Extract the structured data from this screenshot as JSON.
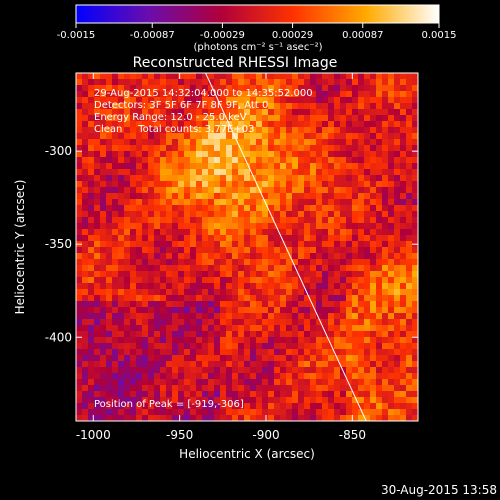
{
  "chart_data": {
    "type": "heatmap",
    "title": "Reconstructed RHESSI Image",
    "xlabel": "Heliocentric X (arcsec)",
    "ylabel": "Heliocentric Y (arcsec)",
    "xlim": [
      -1010,
      -812
    ],
    "ylim": [
      -445,
      -258
    ],
    "x_ticks": [
      -1000,
      -950,
      -900,
      -850
    ],
    "x_tick_labels": [
      "-1000",
      "-950",
      "-900",
      "-850"
    ],
    "y_ticks": [
      -300,
      -350,
      -400
    ],
    "y_tick_labels": [
      "-300",
      "-350",
      "-400"
    ],
    "colorbar": {
      "min": -0.0015,
      "max": 0.0015,
      "ticks": [
        -0.0015,
        -0.00087,
        -0.00029,
        0.00029,
        0.00087,
        0.0015
      ],
      "tick_labels": [
        "-0.0015",
        "-0.00087",
        "-0.00029",
        "0.00029",
        "0.00087",
        "0.0015"
      ],
      "unit_label": "(photons cm⁻² s⁻¹ asec⁻²)",
      "colors": [
        "#0000ff",
        "#6a0dad",
        "#b0003a",
        "#ff3300",
        "#ffaa00",
        "#ffffff"
      ]
    },
    "peak_position": [
      -919,
      -306
    ],
    "limb_line": [
      [
        -935,
        -258
      ],
      [
        -842,
        -445
      ]
    ],
    "annotations": [
      "29-Aug-2015 14:32:04.000 to 14:35:52.000",
      "Detectors: 3F 5F 6F 7F 8F 9F, Att 0",
      "Energy Range: 12.0 - 25.0 keV",
      "Clean     Total counts: 3.77E+03",
      "Position of Peak = [-919,-306]"
    ]
  },
  "footer_timestamp": "30-Aug-2015 13:58"
}
